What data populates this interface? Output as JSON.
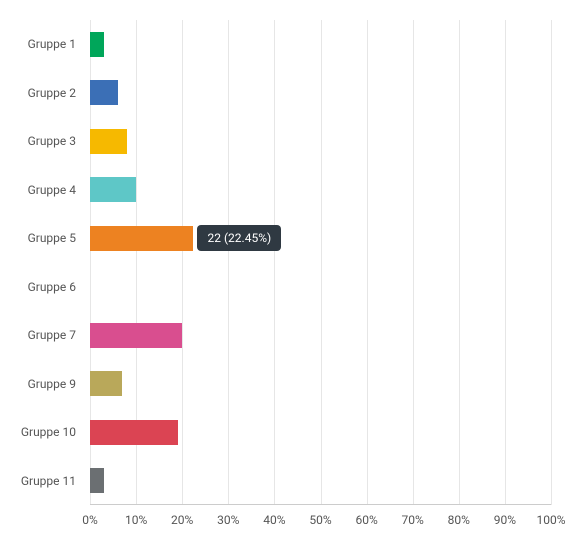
{
  "chart": {
    "type": "bar-horizontal",
    "background_color": "#ffffff",
    "grid_color": "#e6e6e6",
    "axis_color": "#cccccc",
    "label_color": "#555555",
    "label_fontsize": 12,
    "xmin": 0,
    "xmax": 100,
    "xtick_step": 10,
    "x_unit": "%",
    "xticks": [
      {
        "value": 0,
        "label": "0%"
      },
      {
        "value": 10,
        "label": "10%"
      },
      {
        "value": 20,
        "label": "20%"
      },
      {
        "value": 30,
        "label": "30%"
      },
      {
        "value": 40,
        "label": "40%"
      },
      {
        "value": 50,
        "label": "50%"
      },
      {
        "value": 60,
        "label": "60%"
      },
      {
        "value": 70,
        "label": "70%"
      },
      {
        "value": 80,
        "label": "80%"
      },
      {
        "value": 90,
        "label": "90%"
      },
      {
        "value": 100,
        "label": "100%"
      }
    ],
    "bar_height_ratio": 0.52,
    "categories": [
      {
        "label": "Gruppe 1",
        "value": 3,
        "color": "#00a65a"
      },
      {
        "label": "Gruppe 2",
        "value": 6,
        "color": "#3b6fb6"
      },
      {
        "label": "Gruppe 3",
        "value": 8,
        "color": "#f6b900"
      },
      {
        "label": "Gruppe 4",
        "value": 10,
        "color": "#5ec7c7"
      },
      {
        "label": "Gruppe 5",
        "value": 22.45,
        "color": "#ed8221",
        "tooltip": {
          "text": "22 (22.45%)",
          "bg": "#2f3942",
          "fg": "#ffffff"
        }
      },
      {
        "label": "Gruppe 6",
        "value": 0,
        "color": "#888888"
      },
      {
        "label": "Gruppe 7",
        "value": 20,
        "color": "#d94e8f"
      },
      {
        "label": "Gruppe 9",
        "value": 7,
        "color": "#b9a85a"
      },
      {
        "label": "Gruppe 10",
        "value": 19,
        "color": "#db4453"
      },
      {
        "label": "Gruppe 11",
        "value": 3,
        "color": "#6b6f72"
      }
    ]
  }
}
